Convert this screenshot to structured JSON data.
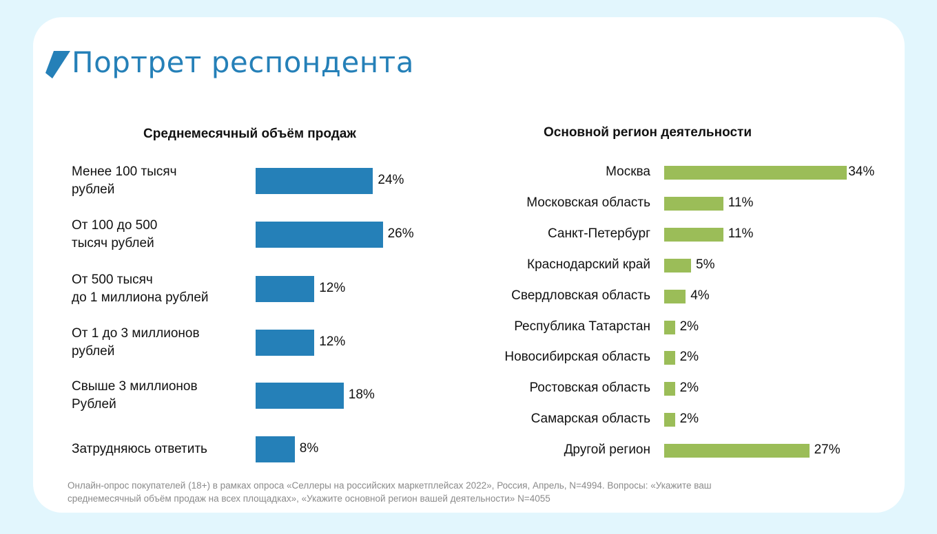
{
  "title": "Портрет респондента",
  "colors": {
    "left_bar": "#2580b8",
    "right_bar": "#9bbd58",
    "title": "#2580b8"
  },
  "chart_data": [
    {
      "type": "bar",
      "orientation": "horizontal",
      "title": "Среднемесячный объём продаж",
      "categories": [
        "Менее 100 тысяч\nрублей",
        "От 100 до 500\nтысяч рублей",
        "От 500 тысяч\nдо 1 миллиона рублей",
        "От 1 до 3 миллионов\nрублей",
        "Свыше 3 миллионов\nРублей",
        "Затрудняюсь ответить"
      ],
      "values": [
        24,
        26,
        12,
        12,
        18,
        8
      ],
      "labels": [
        "24%",
        "26%",
        "12%",
        "12%",
        "18%",
        "8%"
      ]
    },
    {
      "type": "bar",
      "orientation": "horizontal",
      "title": "Основной регион деятельности",
      "categories": [
        "Москва",
        "Московская область",
        "Санкт-Петербург",
        "Краснодарский край",
        "Свердловская область",
        "Республика Татарстан",
        "Новосибирская область",
        "Ростовская область",
        "Самарская область",
        "Другой регион"
      ],
      "values": [
        34,
        11,
        11,
        5,
        4,
        2,
        2,
        2,
        2,
        27
      ],
      "labels": [
        "34%",
        "11%",
        "11%",
        "5%",
        "4%",
        "2%",
        "2%",
        "2%",
        "2%",
        "27%"
      ]
    }
  ],
  "footnote": "Онлайн-опрос покупателей (18+) в рамках опроса «Селлеры на российских маркетплейсах 2022», Россия, Апрель, N=4994. Вопросы: «Укажите ваш  среднемесячный объём продаж на всех площадках», «Укажите основной регион вашей деятельности» N=4055"
}
